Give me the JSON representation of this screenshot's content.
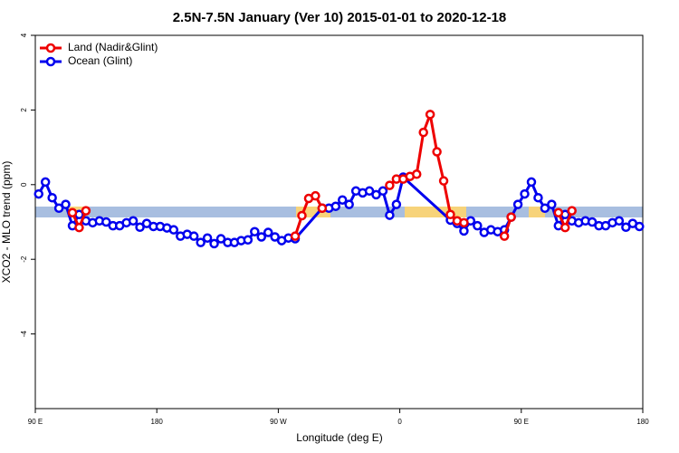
{
  "chart_data": {
    "type": "line",
    "title": "2.5N-7.5N January (Ver 10)   2015-01-01 to 2020-12-18",
    "x_label": "Longitude (deg E)",
    "y_label": "XCO2 - MLO trend (ppm)",
    "xlim": [
      90,
      540
    ],
    "ylim": [
      -6,
      4
    ],
    "xticks": [
      {
        "value": 90,
        "label": "90 E"
      },
      180,
      {
        "value": 270,
        "label": "90 W"
      },
      {
        "value": 360,
        "label": "0"
      },
      {
        "value": 450,
        "label": "90 E"
      },
      {
        "value": 540,
        "label": "180"
      }
    ],
    "yticks": [
      -4,
      -2,
      0,
      2,
      4
    ],
    "legend": "top-left",
    "series": [
      {
        "name": "Land (Nadir&Glint)",
        "color": "#ee0000",
        "x": [
          117.5,
          122.5,
          127.5,
          200,
          282.5,
          287.5,
          292.5,
          297.5,
          302.5,
          330,
          352.5,
          357.5,
          362.5,
          367.5,
          372.5,
          377.5,
          382.5,
          387.5,
          392.5,
          397.5,
          402.5,
          407.5,
          420,
          437.5,
          442.5,
          460,
          477.5,
          482.5,
          487.5
        ],
        "values": [
          -0.75,
          -1.15,
          -0.7,
          null,
          -1.38,
          -0.83,
          -0.37,
          -0.3,
          -0.63,
          null,
          -0.02,
          0.15,
          0.15,
          0.22,
          0.28,
          1.4,
          1.88,
          0.88,
          0.1,
          -0.8,
          -0.97,
          -1.02,
          null,
          -1.38,
          -0.87,
          null,
          -0.75,
          -1.15,
          -0.7
        ]
      },
      {
        "name": "Ocean (Glint)",
        "color": "#0000ee",
        "x": [
          92.5,
          97.5,
          102.5,
          107.5,
          112.5,
          117.5,
          122.5,
          127.5,
          132.5,
          137.5,
          142.5,
          147.5,
          152.5,
          157.5,
          162.5,
          167.5,
          172.5,
          177.5,
          182.5,
          187.5,
          192.5,
          197.5,
          202.5,
          207.5,
          212.5,
          217.5,
          222.5,
          227.5,
          232.5,
          237.5,
          242.5,
          247.5,
          252.5,
          257.5,
          262.5,
          267.5,
          272.5,
          277.5,
          282.5,
          302.5,
          307.5,
          312.5,
          317.5,
          322.5,
          327.5,
          332.5,
          337.5,
          342.5,
          347.5,
          352.5,
          357.5,
          362.5,
          397.5,
          402.5,
          407.5,
          412.5,
          417.5,
          422.5,
          427.5,
          432.5,
          437.5,
          442.5,
          447.5,
          452.5,
          457.5,
          462.5,
          467.5,
          472.5,
          477.5,
          482.5,
          487.5,
          492.5,
          497.5,
          502.5,
          507.5,
          512.5,
          517.5,
          522.5,
          527.5,
          532.5,
          537.5
        ],
        "values": [
          -0.25,
          0.07,
          -0.35,
          -0.63,
          -0.53,
          -1.1,
          -0.8,
          -0.97,
          -1.02,
          -0.97,
          -1.0,
          -1.1,
          -1.1,
          -1.02,
          -0.97,
          -1.14,
          -1.04,
          -1.12,
          -1.12,
          -1.16,
          -1.21,
          -1.38,
          -1.33,
          -1.38,
          -1.55,
          -1.43,
          -1.58,
          -1.45,
          -1.55,
          -1.55,
          -1.5,
          -1.48,
          -1.26,
          -1.4,
          -1.28,
          -1.4,
          -1.5,
          -1.43,
          -1.45,
          -0.63,
          -0.63,
          -0.58,
          -0.41,
          -0.53,
          -0.17,
          -0.22,
          -0.17,
          -0.27,
          -0.17,
          -0.82,
          -0.53,
          0.2,
          -0.95,
          -1.04,
          -1.24,
          -0.97,
          -1.1,
          -1.28,
          -1.21,
          -1.26,
          -1.21,
          -0.87,
          -0.53,
          -0.25,
          0.07,
          -0.35,
          -0.63,
          -0.53,
          -1.1,
          -0.8,
          -0.97,
          -1.02,
          -0.97,
          -1.0,
          -1.1,
          -1.1,
          -1.02,
          -0.97,
          -1.14,
          -1.04,
          -1.12
        ]
      }
    ]
  }
}
